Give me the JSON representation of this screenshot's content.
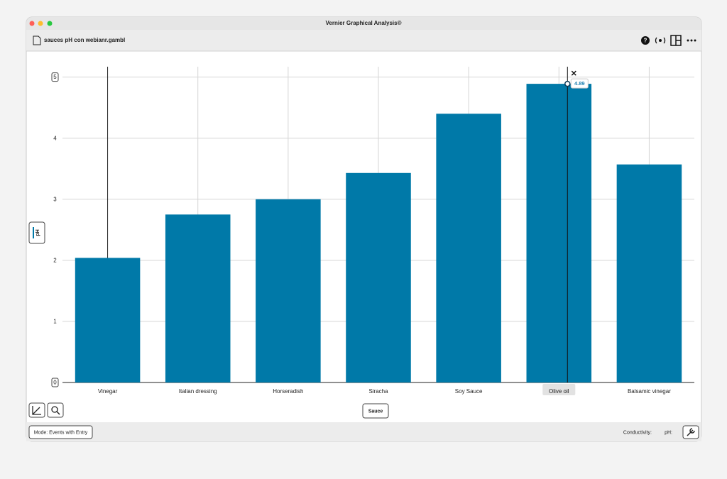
{
  "window": {
    "title": "Vernier Graphical Analysis®",
    "file_name": "sauces pH con webianr.gambl"
  },
  "chart_data": {
    "type": "bar",
    "categories": [
      "Vinegar",
      "Italian dressing",
      "Horseradish",
      "Siracha",
      "Soy Sauce",
      "Olive oil",
      "Balsamic vinegar"
    ],
    "values": [
      2.04,
      2.75,
      3.0,
      3.43,
      4.4,
      4.89,
      3.57
    ],
    "color": "#0079a8",
    "y_label": "pH",
    "x_label": "Sauce",
    "ylim": [
      0,
      5.17
    ],
    "yticks": [
      0,
      1,
      2,
      3,
      4,
      5
    ],
    "grid": true
  },
  "footer": {
    "mode": "Mode: Events with Entry",
    "sensor_1": "Conductivity:",
    "sensor_2": "pH:"
  }
}
